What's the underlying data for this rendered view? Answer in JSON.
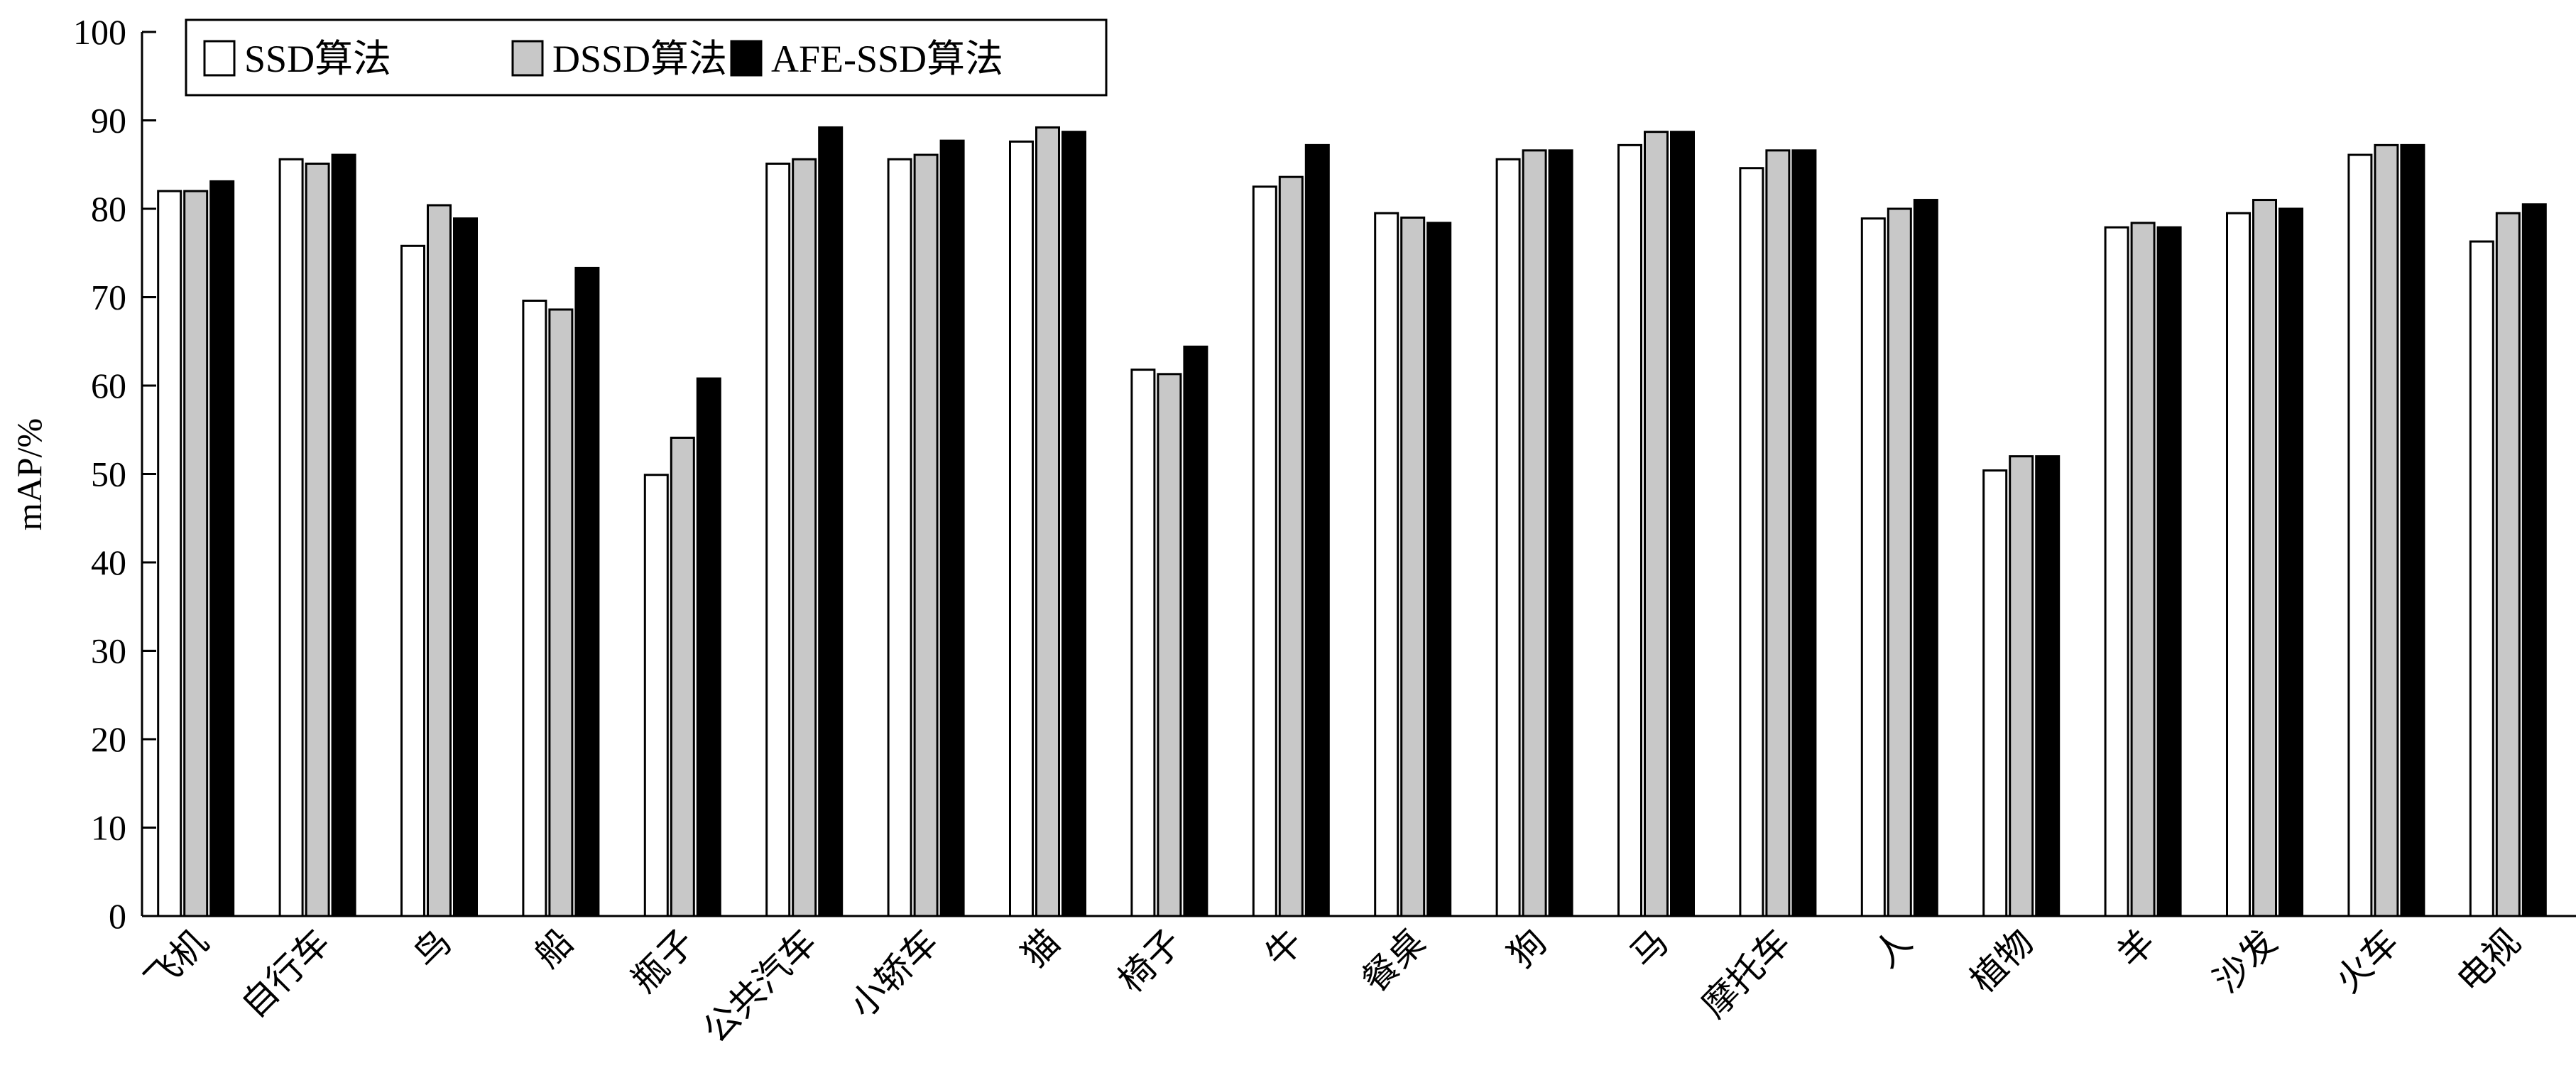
{
  "chart_data": {
    "type": "bar",
    "title": "",
    "xlabel": "",
    "ylabel": "mAP/%",
    "ylim": [
      0,
      100
    ],
    "yticks": [
      0,
      10,
      20,
      30,
      40,
      50,
      60,
      70,
      80,
      90,
      100
    ],
    "grid": false,
    "legend_position": "top-left",
    "categories": [
      "飞机",
      "自行车",
      "鸟",
      "船",
      "瓶子",
      "公共汽车",
      "小轿车",
      "猫",
      "椅子",
      "牛",
      "餐桌",
      "狗",
      "马",
      "摩托车",
      "人",
      "植物",
      "羊",
      "沙发",
      "火车",
      "电视"
    ],
    "series": [
      {
        "name": "SSD算法",
        "color": "#ffffff",
        "values": [
          82.0,
          85.6,
          75.8,
          69.6,
          49.9,
          85.1,
          85.6,
          87.6,
          61.8,
          82.5,
          79.5,
          85.6,
          87.2,
          84.6,
          78.9,
          50.4,
          77.9,
          79.5,
          86.1,
          76.3
        ]
      },
      {
        "name": "DSSD算法",
        "color": "#c8c8c8",
        "values": [
          82.0,
          85.1,
          80.4,
          68.6,
          54.1,
          85.6,
          86.1,
          89.2,
          61.3,
          83.6,
          79.0,
          86.6,
          88.7,
          86.6,
          80.0,
          52.0,
          78.4,
          81.0,
          87.2,
          79.5
        ]
      },
      {
        "name": "AFE-SSD算法",
        "color": "#000000",
        "values": [
          83.1,
          86.1,
          78.9,
          73.3,
          60.8,
          89.2,
          87.7,
          88.7,
          64.4,
          87.2,
          78.4,
          86.6,
          88.7,
          86.6,
          81.0,
          52.0,
          77.9,
          80.0,
          87.2,
          80.5
        ]
      }
    ]
  }
}
